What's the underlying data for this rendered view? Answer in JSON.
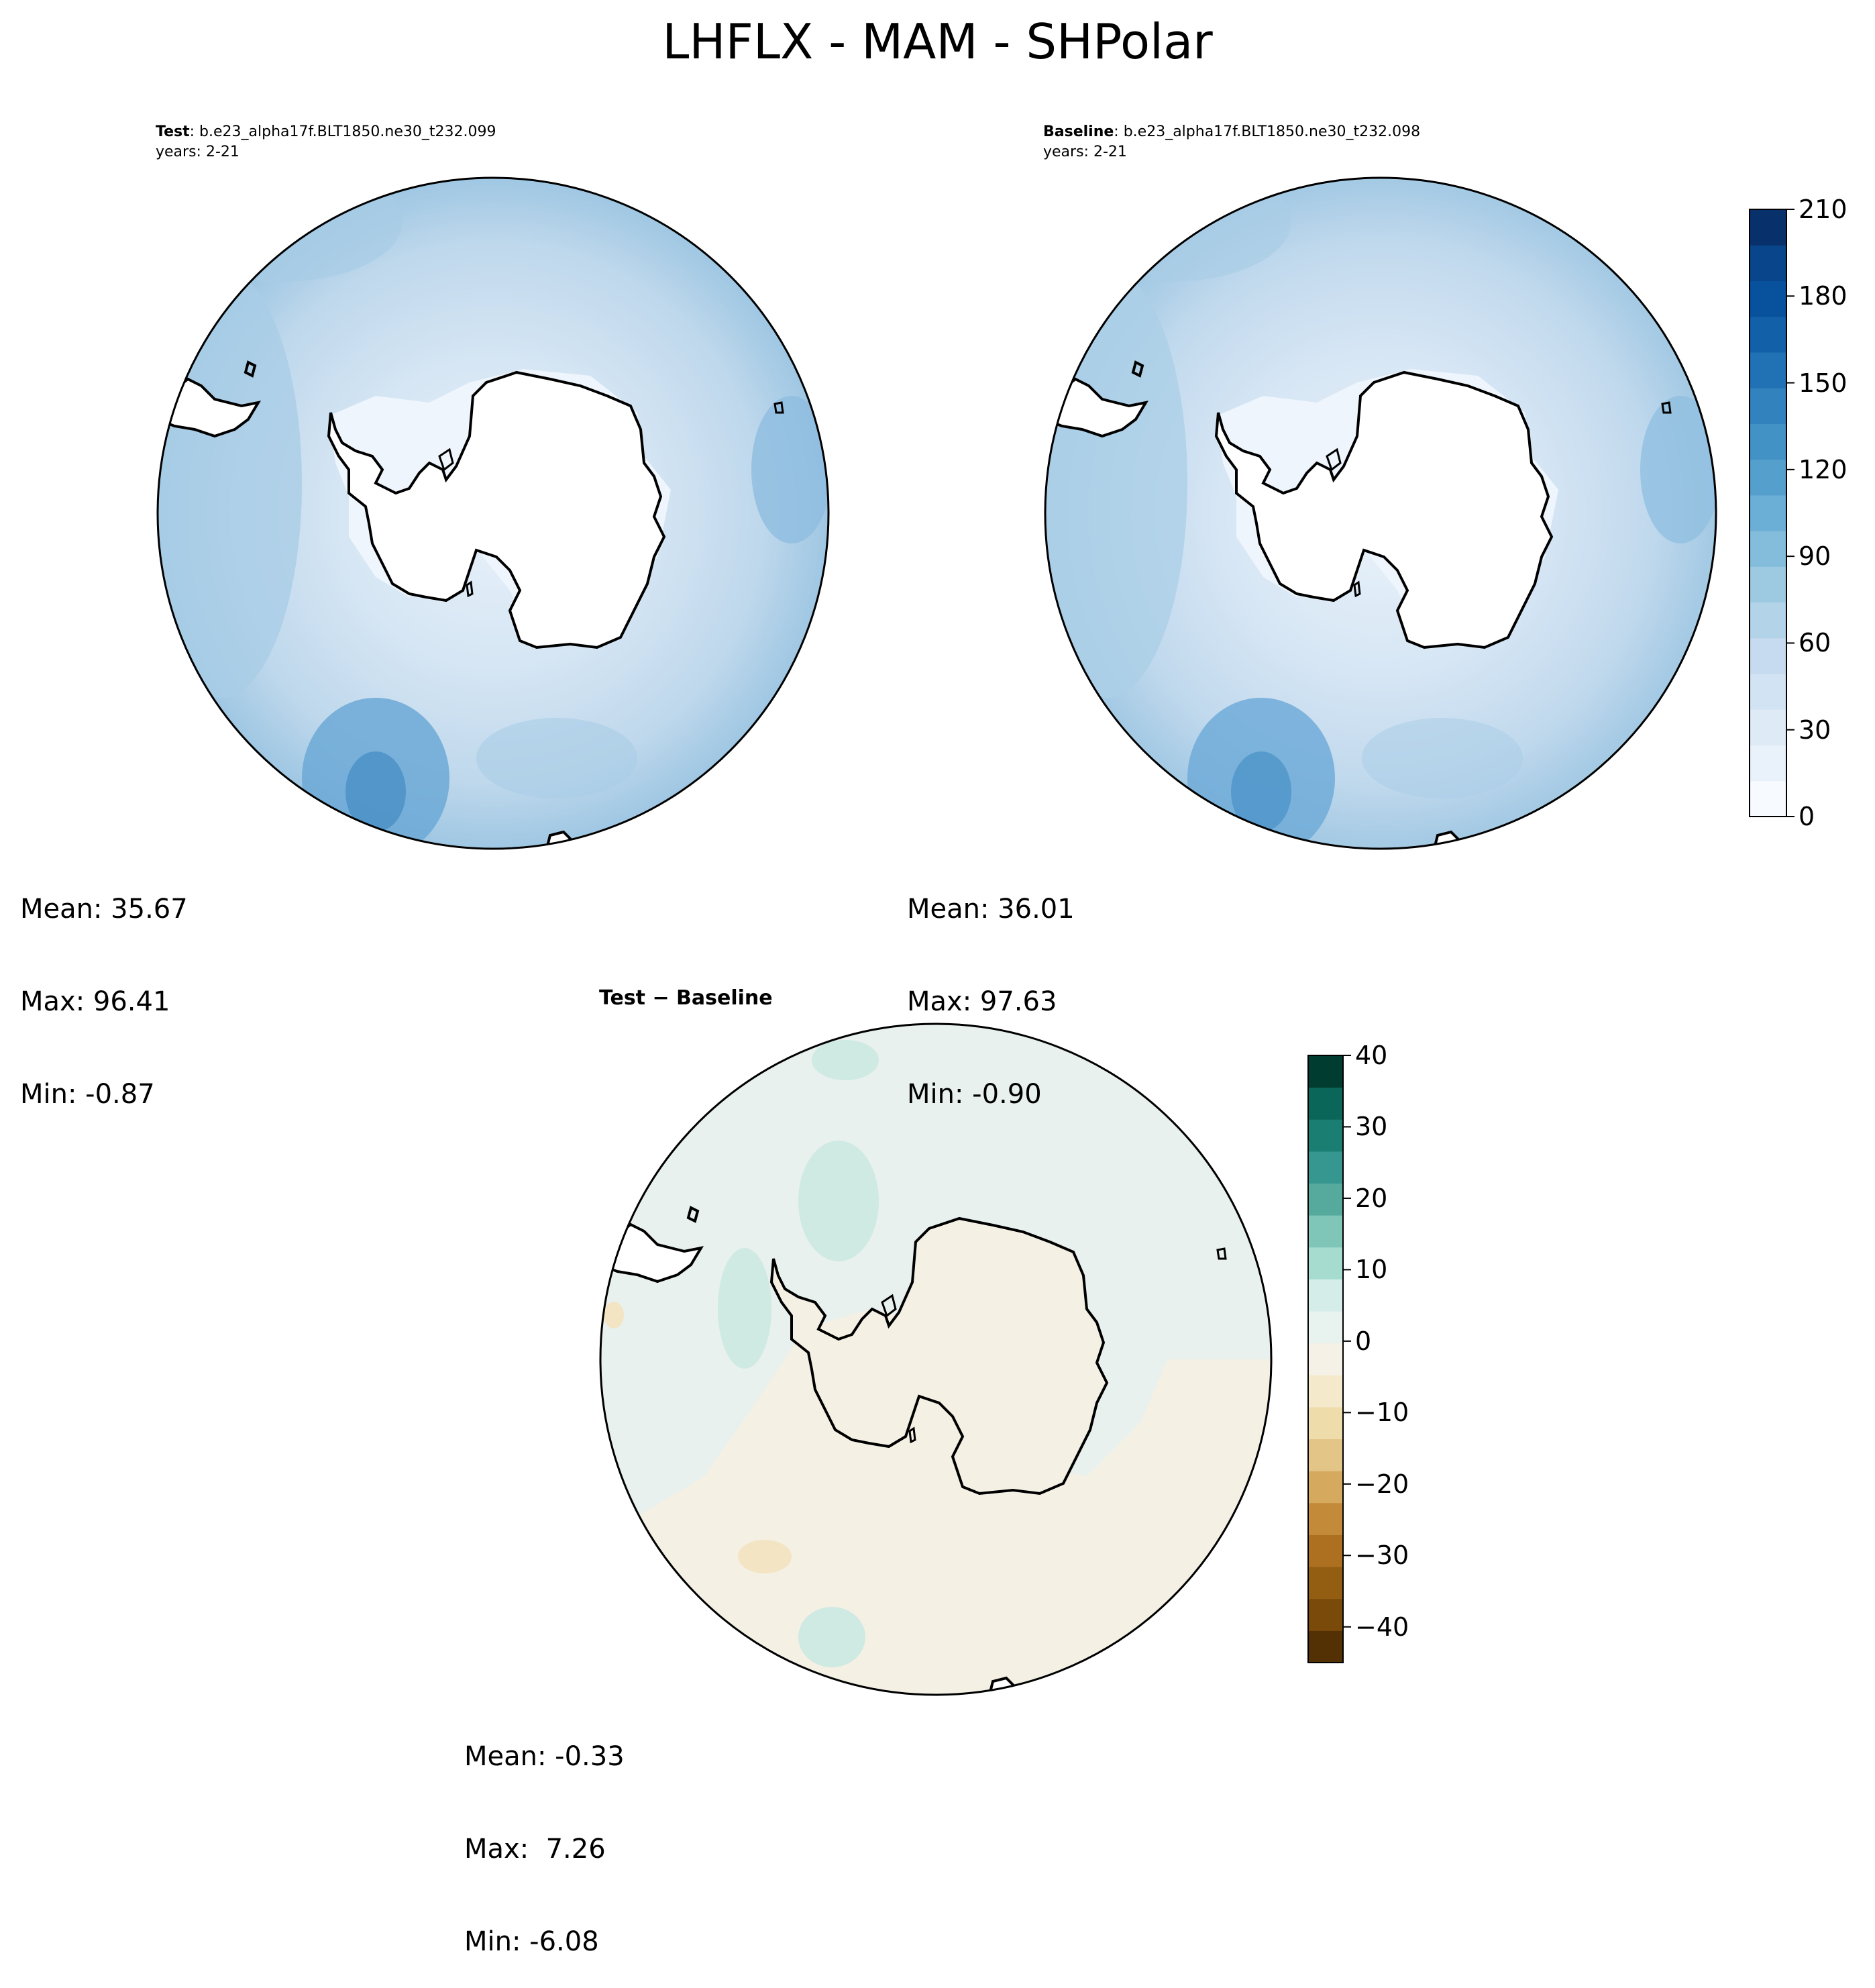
{
  "figure": {
    "title": "LHFLX - MAM - SHPolar"
  },
  "panels": {
    "test": {
      "label_bold": "Test",
      "label_rest": ": b.e23_alpha17f.BLT1850.ne30_t232.099",
      "years": "years: 2-21",
      "stats": {
        "mean": "Mean: 35.67",
        "max": "Max: 96.41",
        "min": "Min: -0.87"
      }
    },
    "baseline": {
      "label_bold": "Baseline",
      "label_rest": ": b.e23_alpha17f.BLT1850.ne30_t232.098",
      "years": "years: 2-21",
      "stats": {
        "mean": "Mean: 36.01",
        "max": "Max: 97.63",
        "min": "Min: -0.90"
      }
    },
    "diff": {
      "title": "Test − Baseline",
      "stats": {
        "mean": "Mean: -0.33",
        "max": "Max:  7.26",
        "min": "Min: -6.08"
      }
    }
  },
  "colorbars": {
    "main": {
      "ticks": [
        "0",
        "30",
        "60",
        "90",
        "120",
        "150",
        "180",
        "210"
      ],
      "colors": [
        "#f7fbff",
        "#e9f2fb",
        "#deebf7",
        "#d2e4f3",
        "#c6dbef",
        "#b3d3e8",
        "#9ecae1",
        "#84bcdb",
        "#6baed6",
        "#559fcd",
        "#4292c6",
        "#3282be",
        "#2171b5",
        "#1261a8",
        "#08519c",
        "#08458a",
        "#08306b"
      ]
    },
    "diff": {
      "ticks": [
        "40",
        "30",
        "20",
        "10",
        "0",
        "−10",
        "−20",
        "−30",
        "−40"
      ],
      "colors": [
        "#543005",
        "#7a4a0a",
        "#935d12",
        "#ad7020",
        "#c38a3a",
        "#d5aa5e",
        "#e3c588",
        "#eedcab",
        "#f5e9cc",
        "#f5f1e6",
        "#e8f2ef",
        "#d4ede8",
        "#a6dcd0",
        "#80c6b8",
        "#56a99d",
        "#35978f",
        "#1b7e73",
        "#0a6659",
        "#003c30"
      ]
    }
  },
  "palette": {
    "ocean_test": "#bcd6ea",
    "ocean_base": "#bfd8ec",
    "ice": "#e6f0fa",
    "warm_patch": "#7fb5d9",
    "diff_neutral": "#e9f1ee",
    "diff_neg": "#f5f0e3",
    "diff_pos": "#cfe9e4",
    "coast": "#000000"
  }
}
